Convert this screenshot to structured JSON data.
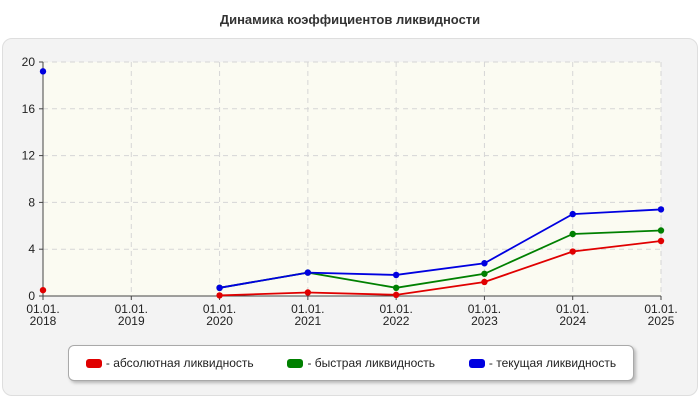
{
  "chart_data": {
    "type": "line",
    "title": "Динамика коэффициентов ликвидности",
    "xlabel": "",
    "ylabel": "",
    "categories": [
      "01.01.\n2018",
      "01.01.\n2019",
      "01.01.\n2020",
      "01.01.\n2021",
      "01.01.\n2022",
      "01.01.\n2023",
      "01.01.\n2024",
      "01.01.\n2025"
    ],
    "ylim": [
      0,
      20
    ],
    "yticks": [
      0,
      4,
      8,
      12,
      16,
      20
    ],
    "grid": true,
    "legend_position": "bottom",
    "series": [
      {
        "name": "- абсолютная ликвидность",
        "color": "#e00000",
        "values": [
          0.5,
          null,
          0.05,
          0.3,
          0.1,
          1.2,
          3.8,
          4.7
        ]
      },
      {
        "name": "- быстрая ликвидность",
        "color": "#008000",
        "values": [
          null,
          null,
          0.7,
          2.0,
          0.7,
          1.9,
          5.3,
          5.6
        ]
      },
      {
        "name": "- текущая ликвидность",
        "color": "#0000e0",
        "values": [
          19.2,
          null,
          0.7,
          2.0,
          1.8,
          2.8,
          7.0,
          7.4
        ]
      }
    ]
  }
}
